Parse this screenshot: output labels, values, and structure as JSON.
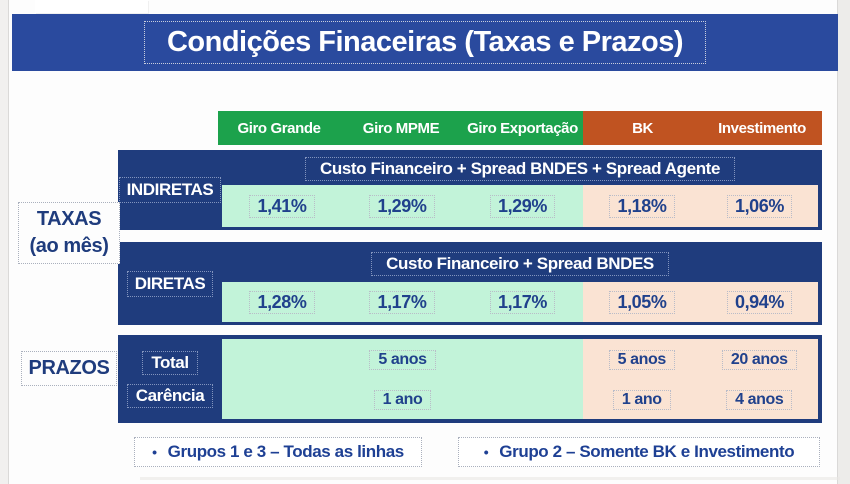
{
  "title": "Condições Finaceiras (Taxas e Prazos)",
  "columns": [
    "Giro Grande",
    "Giro MPME",
    "Giro Exportação",
    "BK",
    "Investimento"
  ],
  "side_labels": {
    "taxas_line1": "TAXAS",
    "taxas_line2": "(ao mês)",
    "prazos": "PRAZOS"
  },
  "taxas": {
    "indiretas": {
      "label": "INDIRETAS",
      "banner": "Custo Financeiro + Spread BNDES + Spread Agente",
      "values": [
        "1,41%",
        "1,29%",
        "1,29%",
        "1,18%",
        "1,06%"
      ]
    },
    "diretas": {
      "label": "DIRETAS",
      "banner": "Custo Financeiro + Spread BNDES",
      "values": [
        "1,28%",
        "1,17%",
        "1,17%",
        "1,05%",
        "0,94%"
      ]
    }
  },
  "prazos": {
    "total": {
      "label": "Total",
      "giro": "5 anos",
      "bk": "5 anos",
      "investimento": "20 anos"
    },
    "carencia": {
      "label": "Carência",
      "giro": "1 ano",
      "bk": "1 ano",
      "investimento": "4 anos"
    }
  },
  "notes": [
    {
      "bullet": "•",
      "text": "Grupos 1 e 3 – Todas as linhas"
    },
    {
      "bullet": "•",
      "text": "Grupo 2 – Somente BK e Investimento"
    }
  ],
  "colors": {
    "title_bar_blue": "#2A4A9E",
    "table_navy": "#1F3C7D",
    "giro_green": "#1CA24C",
    "bk_orange": "#C05321",
    "giro_light_green": "#C2F3D9",
    "bk_light_pink": "#FAE3D3",
    "value_text_navy": "#20418C"
  }
}
